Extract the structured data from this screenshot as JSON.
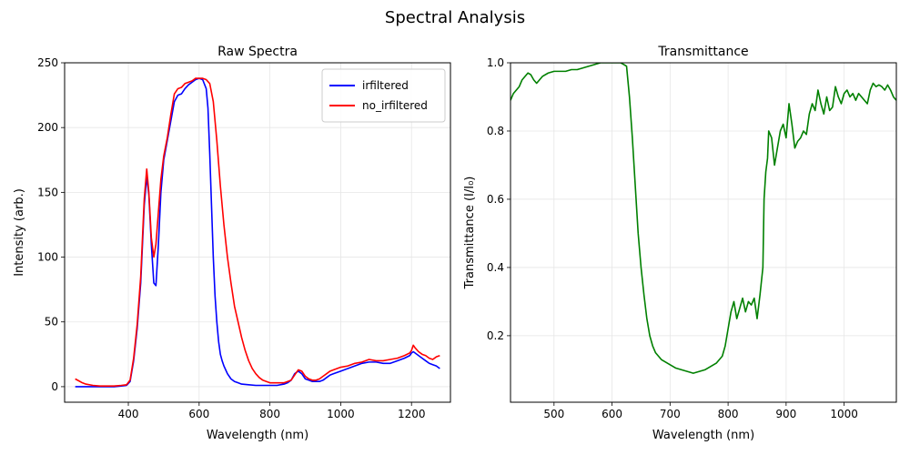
{
  "figure": {
    "title": "Spectral Analysis"
  },
  "chart_data": [
    {
      "type": "line",
      "title": "Raw Spectra",
      "xlabel": "Wavelength (nm)",
      "ylabel": "Intensity (arb.)",
      "xlim": [
        220,
        1310
      ],
      "ylim": [
        -12,
        250
      ],
      "xticks": [
        400,
        600,
        800,
        1000,
        1200
      ],
      "yticks": [
        0,
        50,
        100,
        150,
        200,
        250
      ],
      "grid": true,
      "legend_position": "upper right",
      "series": [
        {
          "name": "irfiltered",
          "color": "#0000ff",
          "x": [
            250,
            280,
            300,
            320,
            340,
            360,
            380,
            395,
            405,
            415,
            425,
            435,
            445,
            452,
            458,
            465,
            472,
            478,
            485,
            492,
            500,
            510,
            520,
            530,
            540,
            550,
            560,
            570,
            580,
            590,
            600,
            610,
            620,
            625,
            630,
            635,
            640,
            645,
            650,
            655,
            660,
            665,
            670,
            680,
            690,
            700,
            710,
            720,
            740,
            760,
            780,
            800,
            820,
            840,
            850,
            860,
            870,
            880,
            890,
            900,
            910,
            920,
            930,
            940,
            950,
            960,
            970,
            980,
            1000,
            1020,
            1040,
            1060,
            1080,
            1100,
            1120,
            1140,
            1160,
            1180,
            1195,
            1200,
            1205,
            1210,
            1220,
            1230,
            1240,
            1250,
            1260,
            1270,
            1280
          ],
          "y": [
            0,
            0,
            0,
            0,
            0,
            0,
            0.5,
            1,
            4,
            20,
            45,
            80,
            140,
            162,
            148,
            110,
            80,
            78,
            110,
            150,
            175,
            190,
            205,
            220,
            225,
            226,
            230,
            233,
            235,
            237,
            238,
            237,
            230,
            215,
            180,
            140,
            100,
            70,
            50,
            35,
            25,
            20,
            16,
            10,
            6,
            4,
            3,
            2,
            1.5,
            1,
            1,
            1,
            1,
            2,
            3,
            5,
            10,
            12,
            10,
            6,
            5,
            4,
            4,
            4,
            5,
            7,
            9,
            10,
            12,
            14,
            16,
            18,
            19,
            19,
            18,
            18,
            20,
            22,
            24,
            26,
            27,
            26,
            24,
            22,
            20,
            18,
            17,
            16,
            14
          ]
        },
        {
          "name": "no_irfiltered",
          "color": "#ff0000",
          "x": [
            250,
            260,
            270,
            280,
            300,
            320,
            340,
            360,
            380,
            395,
            405,
            415,
            425,
            435,
            445,
            452,
            458,
            465,
            472,
            478,
            485,
            492,
            500,
            510,
            520,
            530,
            540,
            550,
            560,
            570,
            580,
            590,
            600,
            610,
            620,
            630,
            640,
            650,
            660,
            670,
            680,
            690,
            700,
            710,
            720,
            730,
            740,
            750,
            760,
            770,
            780,
            790,
            800,
            820,
            840,
            850,
            860,
            870,
            880,
            890,
            900,
            910,
            920,
            930,
            940,
            950,
            960,
            970,
            980,
            1000,
            1020,
            1040,
            1060,
            1080,
            1100,
            1120,
            1140,
            1160,
            1180,
            1195,
            1200,
            1205,
            1210,
            1220,
            1230,
            1240,
            1250,
            1260,
            1270,
            1280
          ],
          "y": [
            6,
            4.5,
            3,
            2,
            1,
            0.5,
            0.5,
            0.5,
            1,
            1.5,
            5,
            22,
            48,
            85,
            145,
            168,
            150,
            115,
            100,
            110,
            135,
            160,
            178,
            192,
            210,
            226,
            230,
            231,
            234,
            235,
            236,
            238,
            238,
            238,
            237,
            234,
            220,
            190,
            155,
            125,
            100,
            80,
            62,
            50,
            38,
            28,
            20,
            14,
            10,
            7,
            5,
            4,
            3,
            3,
            3,
            4,
            5,
            9,
            13,
            12,
            8,
            6,
            5,
            5,
            6,
            8,
            10,
            12,
            13,
            15,
            16,
            18,
            19,
            21,
            20,
            20,
            21,
            22,
            24,
            26,
            28,
            32,
            30,
            27,
            25,
            24,
            22,
            21,
            23,
            24
          ]
        }
      ]
    },
    {
      "type": "line",
      "title": "Transmittance",
      "xlabel": "Wavelength (nm)",
      "ylabel": "Transmittance (I/I₀)",
      "xlim": [
        425,
        1090
      ],
      "ylim": [
        0.005,
        1.0
      ],
      "xticks": [
        500,
        600,
        700,
        800,
        900,
        1000
      ],
      "yticks": [
        0.2,
        0.4,
        0.6,
        0.8,
        1.0
      ],
      "ytick_labels": [
        "0.2",
        "0.4",
        "0.6",
        "0.8",
        "1.0"
      ],
      "grid": true,
      "series": [
        {
          "color": "#008000",
          "x": [
            425,
            430,
            435,
            440,
            445,
            450,
            455,
            460,
            465,
            470,
            475,
            480,
            490,
            500,
            510,
            520,
            530,
            540,
            550,
            560,
            570,
            580,
            590,
            600,
            610,
            615,
            620,
            625,
            630,
            635,
            640,
            645,
            650,
            655,
            660,
            665,
            670,
            675,
            680,
            685,
            690,
            700,
            710,
            720,
            730,
            740,
            750,
            760,
            770,
            780,
            790,
            795,
            800,
            805,
            810,
            815,
            820,
            825,
            830,
            835,
            840,
            845,
            850,
            855,
            860,
            862,
            865,
            868,
            870,
            875,
            880,
            885,
            890,
            895,
            900,
            905,
            910,
            915,
            920,
            925,
            930,
            935,
            940,
            945,
            950,
            955,
            960,
            965,
            970,
            975,
            980,
            985,
            990,
            995,
            1000,
            1005,
            1010,
            1015,
            1020,
            1025,
            1030,
            1035,
            1040,
            1045,
            1050,
            1055,
            1060,
            1065,
            1070,
            1075,
            1080,
            1085,
            1090
          ],
          "y": [
            0.89,
            0.91,
            0.92,
            0.93,
            0.95,
            0.96,
            0.97,
            0.965,
            0.95,
            0.94,
            0.95,
            0.96,
            0.97,
            0.975,
            0.975,
            0.975,
            0.98,
            0.98,
            0.985,
            0.99,
            0.995,
            1.0,
            1.0,
            1.0,
            1.0,
            1.0,
            0.995,
            0.99,
            0.9,
            0.78,
            0.64,
            0.5,
            0.4,
            0.32,
            0.25,
            0.2,
            0.17,
            0.15,
            0.14,
            0.13,
            0.125,
            0.115,
            0.105,
            0.1,
            0.095,
            0.09,
            0.095,
            0.1,
            0.11,
            0.12,
            0.14,
            0.17,
            0.22,
            0.27,
            0.3,
            0.25,
            0.28,
            0.31,
            0.27,
            0.3,
            0.29,
            0.31,
            0.25,
            0.32,
            0.4,
            0.6,
            0.68,
            0.72,
            0.8,
            0.78,
            0.7,
            0.75,
            0.8,
            0.82,
            0.78,
            0.88,
            0.82,
            0.75,
            0.77,
            0.78,
            0.8,
            0.79,
            0.85,
            0.88,
            0.86,
            0.92,
            0.88,
            0.85,
            0.9,
            0.86,
            0.87,
            0.93,
            0.9,
            0.88,
            0.91,
            0.92,
            0.9,
            0.91,
            0.89,
            0.91,
            0.9,
            0.89,
            0.88,
            0.92,
            0.94,
            0.93,
            0.935,
            0.93,
            0.92,
            0.935,
            0.92,
            0.9,
            0.89
          ]
        }
      ]
    }
  ]
}
